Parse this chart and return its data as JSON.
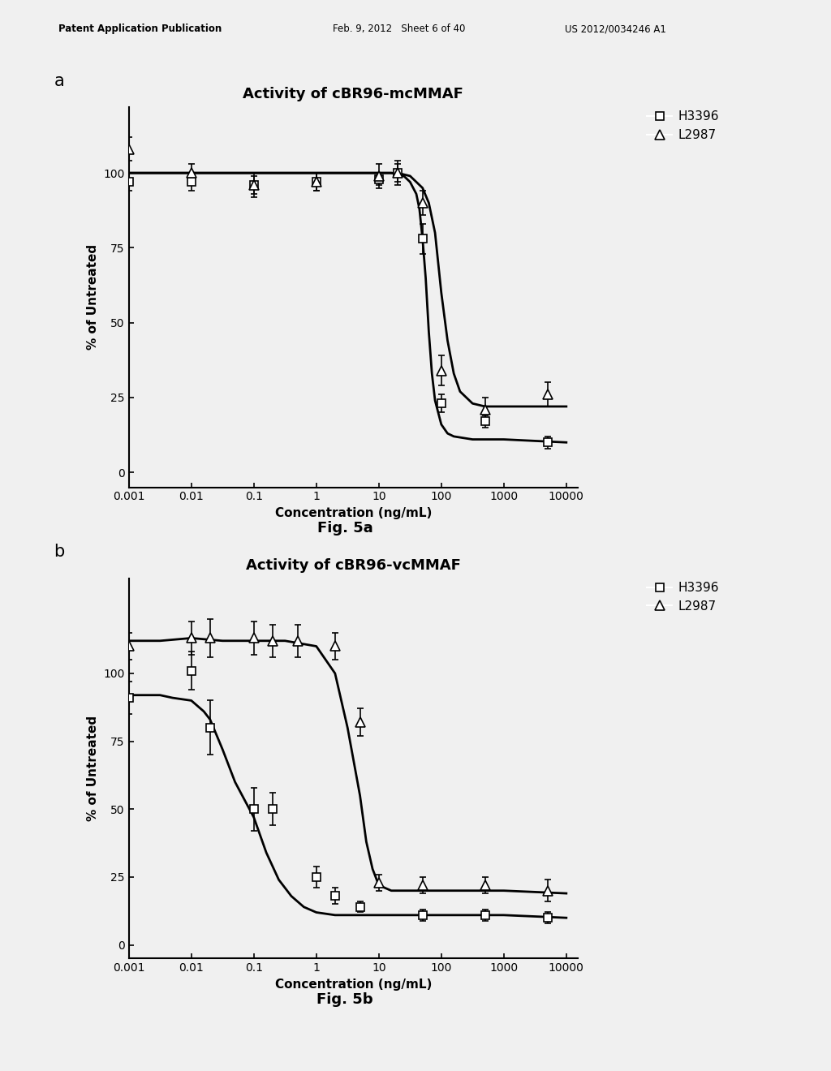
{
  "header_left": "Patent Application Publication",
  "header_mid": "Feb. 9, 2012   Sheet 6 of 40",
  "header_right": "US 2012/0034246 A1",
  "panel_a_title": "Activity of cBR96-mcMMAF",
  "panel_b_title": "Activity of cBR96-vcMMAF",
  "panel_a_label": "a",
  "panel_b_label": "b",
  "fig_a_caption": "Fig. 5a",
  "fig_b_caption": "Fig. 5b",
  "ylabel": "% of Untreated",
  "xlabel": "Concentration (ng/mL)",
  "legend_h3396": "H3396",
  "legend_l2987": "L2987",
  "xlim_log": [
    -3,
    4.18
  ],
  "xticks_log": [
    -3,
    -2,
    -1,
    0,
    1,
    2,
    3,
    4
  ],
  "xtick_labels": [
    "0.001",
    "0.01",
    "0.1",
    "1",
    "10",
    "100",
    "1000",
    "10000"
  ],
  "ylim_a": [
    -5,
    122
  ],
  "yticks_a": [
    0,
    25,
    50,
    75,
    100
  ],
  "ylim_b": [
    -5,
    135
  ],
  "yticks_b": [
    0,
    25,
    50,
    75,
    100
  ],
  "panel_a": {
    "H3396_x": [
      -3,
      -2,
      -1,
      0,
      1,
      1.301,
      1.699,
      2,
      2.699,
      3.699
    ],
    "H3396_y": [
      97,
      97,
      96,
      97,
      98,
      100,
      78,
      23,
      17,
      10
    ],
    "H3396_yerr": [
      3,
      3,
      3,
      3,
      2,
      3,
      5,
      3,
      2,
      2
    ],
    "L2987_x": [
      -3,
      -2,
      -1,
      0,
      1,
      1.301,
      1.699,
      2,
      2.699,
      3.699
    ],
    "L2987_y": [
      108,
      100,
      96,
      97,
      99,
      100,
      90,
      34,
      21,
      26
    ],
    "L2987_yerr": [
      4,
      3,
      4,
      3,
      4,
      4,
      4,
      5,
      4,
      4
    ],
    "H3396_curve_x": [
      -3,
      -2,
      -1,
      0,
      0.8,
      1.0,
      1.2,
      1.4,
      1.5,
      1.6,
      1.65,
      1.7,
      1.75,
      1.8,
      1.85,
      1.9,
      2.0,
      2.1,
      2.2,
      2.5,
      3,
      4
    ],
    "H3396_curve_y": [
      100,
      100,
      100,
      100,
      100,
      100,
      100,
      99,
      97,
      93,
      88,
      78,
      65,
      47,
      33,
      24,
      16,
      13,
      12,
      11,
      11,
      10
    ],
    "L2987_curve_x": [
      -3,
      -2,
      -1,
      0,
      0.8,
      1.0,
      1.3,
      1.5,
      1.7,
      1.8,
      1.9,
      2.0,
      2.1,
      2.2,
      2.3,
      2.5,
      2.7,
      3,
      4
    ],
    "L2987_curve_y": [
      100,
      100,
      100,
      100,
      100,
      100,
      100,
      99,
      95,
      90,
      80,
      60,
      44,
      33,
      27,
      23,
      22,
      22,
      22
    ]
  },
  "panel_b": {
    "H3396_x": [
      -3,
      -2,
      -1.699,
      -1,
      -0.699,
      0,
      0.301,
      0.699,
      1.699,
      2.699,
      3.699
    ],
    "H3396_y": [
      91,
      101,
      80,
      50,
      50,
      25,
      18,
      14,
      11,
      11,
      10
    ],
    "H3396_yerr": [
      6,
      7,
      10,
      8,
      6,
      4,
      3,
      2,
      2,
      2,
      2
    ],
    "L2987_x": [
      -3,
      -2,
      -1.699,
      -1,
      -0.699,
      -0.301,
      0.301,
      0.699,
      1,
      1.699,
      2.699,
      3.699
    ],
    "L2987_y": [
      110,
      113,
      113,
      113,
      112,
      112,
      110,
      82,
      23,
      22,
      22,
      20
    ],
    "L2987_yerr": [
      5,
      6,
      7,
      6,
      6,
      6,
      5,
      5,
      3,
      3,
      3,
      4
    ],
    "H3396_curve_x": [
      -3,
      -2.5,
      -2.3,
      -2.0,
      -1.8,
      -1.699,
      -1.5,
      -1.3,
      -1.0,
      -0.8,
      -0.6,
      -0.4,
      -0.2,
      0,
      0.3,
      0.6,
      1,
      2,
      3,
      4
    ],
    "H3396_curve_y": [
      92,
      92,
      91,
      90,
      86,
      83,
      72,
      60,
      47,
      34,
      24,
      18,
      14,
      12,
      11,
      11,
      11,
      11,
      11,
      10
    ],
    "L2987_curve_x": [
      -3,
      -2.5,
      -2,
      -1.5,
      -1,
      -0.5,
      0,
      0.3,
      0.5,
      0.699,
      0.8,
      0.9,
      1.0,
      1.2,
      1.5,
      2,
      3,
      4
    ],
    "L2987_curve_y": [
      112,
      112,
      113,
      112,
      112,
      112,
      110,
      100,
      80,
      55,
      38,
      28,
      22,
      20,
      20,
      20,
      20,
      19
    ]
  },
  "bg_color": "#f0f0f0",
  "line_color": "#000000"
}
